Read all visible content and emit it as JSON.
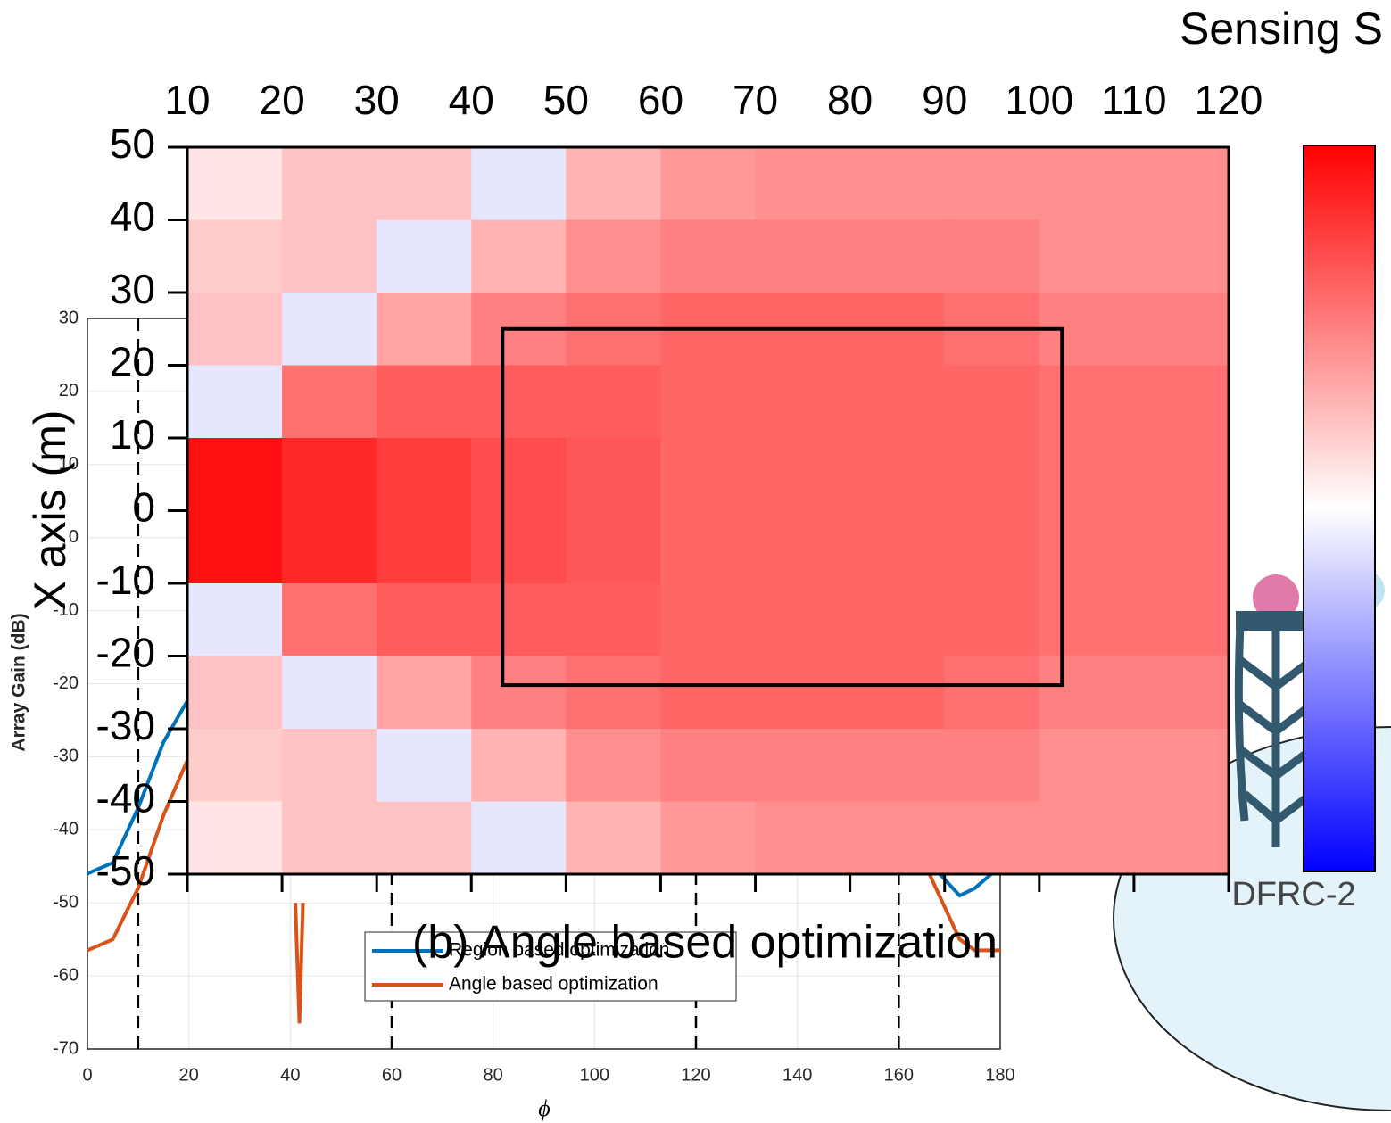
{
  "chart_data": {
    "charts": [
      {
        "type": "line",
        "xlabel": "ϕ",
        "ylabel": "Array Gain (dB)",
        "x": [
          0,
          5,
          10,
          15,
          20,
          40,
          41,
          41.8,
          42.5,
          43.5,
          166,
          168,
          172,
          175,
          180
        ],
        "series": [
          {
            "name": "Region based optimization",
            "color": "#0072bd",
            "values": [
              -46,
              -44.5,
              -37,
              -28,
              -22,
              null,
              null,
              null,
              null,
              null,
              null,
              -46,
              -49,
              -48,
              -45
            ]
          },
          {
            "name": "Angle based optimization",
            "color": "#d95319",
            "values": [
              -56.5,
              -55,
              -48,
              -38,
              -30,
              null,
              -50,
              -66.5,
              -50,
              null,
              -46,
              -49,
              -55,
              -56.5,
              -56.5
            ]
          }
        ],
        "vlines": [
          10,
          60,
          120,
          160
        ],
        "xlim": [
          0,
          180
        ],
        "xticks": [
          0,
          20,
          40,
          60,
          80,
          100,
          120,
          140,
          160,
          180
        ],
        "ylim": [
          -70,
          30
        ],
        "yticks": [
          -70,
          -60,
          -50,
          -40,
          -30,
          -20,
          -10,
          0,
          10,
          20,
          30
        ],
        "grid": true,
        "legend": "bottom-center"
      },
      {
        "type": "heatmap",
        "title": "Sensing S",
        "caption": "(b) Angle based optimization",
        "ylabel": "X axis (m)",
        "xlim": [
          10,
          120
        ],
        "xticks": [
          10,
          20,
          30,
          40,
          50,
          60,
          70,
          80,
          90,
          100,
          110,
          120
        ],
        "ylim": [
          -50,
          50
        ],
        "yticks": [
          -50,
          -40,
          -30,
          -20,
          -10,
          0,
          10,
          20,
          30,
          40,
          50
        ],
        "cmap": [
          "#0000ff",
          "#ffffff",
          "#ff0000"
        ],
        "clim": [
          0,
          1
        ],
        "z": [
          [
            0.55,
            0.62,
            0.62,
            0.45,
            0.65,
            0.7,
            0.72,
            0.72,
            0.72,
            0.72,
            0.72
          ],
          [
            0.6,
            0.62,
            0.45,
            0.65,
            0.72,
            0.75,
            0.75,
            0.75,
            0.75,
            0.72,
            0.72
          ],
          [
            0.62,
            0.45,
            0.68,
            0.75,
            0.78,
            0.8,
            0.8,
            0.8,
            0.78,
            0.75,
            0.75
          ],
          [
            0.45,
            0.78,
            0.82,
            0.82,
            0.82,
            0.8,
            0.8,
            0.8,
            0.8,
            0.78,
            0.78
          ],
          [
            0.97,
            0.92,
            0.88,
            0.85,
            0.83,
            0.8,
            0.8,
            0.8,
            0.8,
            0.78,
            0.78
          ],
          [
            0.97,
            0.92,
            0.88,
            0.85,
            0.83,
            0.8,
            0.8,
            0.8,
            0.8,
            0.78,
            0.78
          ],
          [
            0.45,
            0.78,
            0.82,
            0.82,
            0.82,
            0.8,
            0.8,
            0.8,
            0.8,
            0.78,
            0.78
          ],
          [
            0.62,
            0.45,
            0.68,
            0.75,
            0.78,
            0.8,
            0.8,
            0.8,
            0.78,
            0.75,
            0.75
          ],
          [
            0.6,
            0.62,
            0.45,
            0.65,
            0.72,
            0.75,
            0.75,
            0.75,
            0.75,
            0.72,
            0.72
          ],
          [
            0.55,
            0.62,
            0.62,
            0.45,
            0.65,
            0.7,
            0.72,
            0.72,
            0.72,
            0.72,
            0.72
          ]
        ],
        "region": {
          "x": [
            43.3,
            102.4
          ],
          "y": [
            -24,
            25
          ]
        }
      }
    ]
  },
  "illustration": {
    "label": "DFRC-2"
  }
}
